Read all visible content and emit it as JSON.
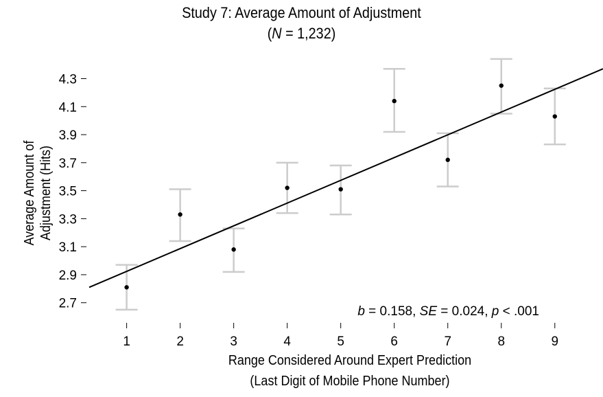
{
  "chart_data": {
    "type": "scatter",
    "title": "Study 7: Average Amount of Adjustment",
    "subtitle": {
      "open": "(",
      "italic": "N",
      "rest": " = 1,232)"
    },
    "xlabel": [
      "Range Considered Around Expert Prediction",
      "(Last Digit of Mobile Phone Number)"
    ],
    "ylabel": [
      "Average Amount of",
      "Adjustment (Hits)"
    ],
    "x": [
      1,
      2,
      3,
      4,
      5,
      6,
      7,
      8,
      9
    ],
    "y": [
      2.81,
      3.33,
      3.08,
      3.52,
      3.51,
      4.14,
      3.72,
      4.25,
      4.03
    ],
    "ci_lower": [
      2.65,
      3.14,
      2.92,
      3.34,
      3.33,
      3.92,
      3.53,
      4.05,
      3.83
    ],
    "ci_upper": [
      2.97,
      3.51,
      3.23,
      3.7,
      3.68,
      4.37,
      3.91,
      4.44,
      4.23
    ],
    "x_ticks": [
      "1",
      "2",
      "3",
      "4",
      "5",
      "6",
      "7",
      "8",
      "9"
    ],
    "y_ticks": [
      "2.7",
      "2.9",
      "3.1",
      "3.3",
      "3.5",
      "3.7",
      "3.9",
      "4.1",
      "4.3"
    ],
    "xlim": [
      0.3,
      9.9
    ],
    "ylim": [
      2.63,
      4.42
    ],
    "regression": {
      "x0": 0.3,
      "y0": 2.81,
      "x1": 9.9,
      "y1": 4.37
    },
    "annotation": [
      {
        "text": "b",
        "italic": true
      },
      {
        "text": " = 0.158, ",
        "italic": false
      },
      {
        "text": "SE",
        "italic": true
      },
      {
        "text": " = 0.024, ",
        "italic": false
      },
      {
        "text": "p",
        "italic": true
      },
      {
        "text": " < .001",
        "italic": false
      }
    ],
    "grid": false,
    "colors": {
      "points": "#000000",
      "errorbars": "#cccccc",
      "line": "#000000"
    }
  }
}
